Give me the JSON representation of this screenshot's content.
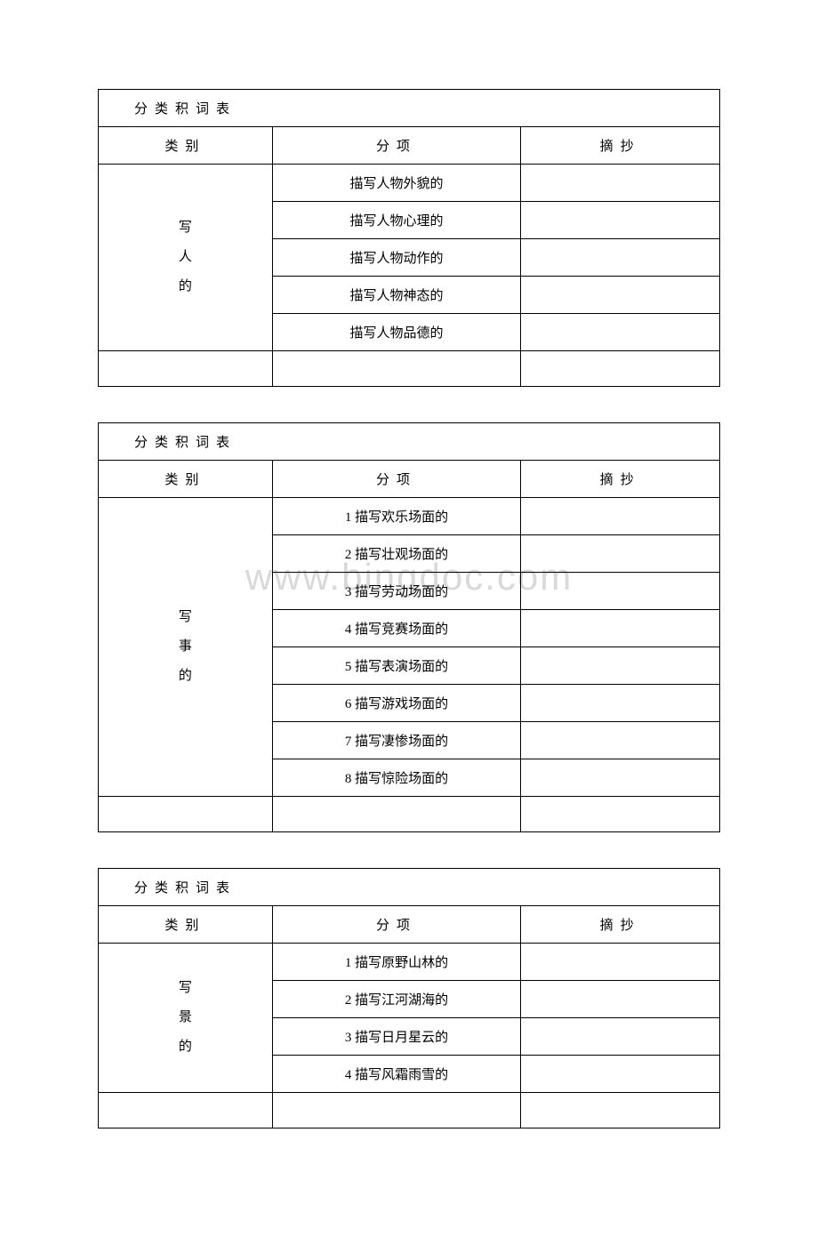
{
  "watermark": "www.bingdoc.com",
  "tables": [
    {
      "title": "分类积词表",
      "headers": [
        "类别",
        "分项",
        "摘抄"
      ],
      "category": [
        "写",
        "人",
        "的"
      ],
      "items": [
        "描写人物外貌的",
        "描写人物心理的",
        "描写人物动作的",
        "描写人物神态的",
        "描写人物品德的"
      ]
    },
    {
      "title": "分类积词表",
      "headers": [
        "类别",
        "分项",
        "摘抄"
      ],
      "category": [
        "写",
        "事",
        "的"
      ],
      "items": [
        "1 描写欢乐场面的",
        "2 描写壮观场面的",
        "3 描写劳动场面的",
        "4 描写竞赛场面的",
        "5 描写表演场面的",
        "6 描写游戏场面的",
        "7 描写凄惨场面的",
        "8 描写惊险场面的"
      ]
    },
    {
      "title": "分类积词表",
      "headers": [
        "类别",
        "分项",
        "摘抄"
      ],
      "category": [
        "写",
        "景",
        "的"
      ],
      "items": [
        "1 描写原野山林的",
        "2 描写江河湖海的",
        "3 描写日月星云的",
        "4 描写风霜雨雪的"
      ]
    }
  ]
}
